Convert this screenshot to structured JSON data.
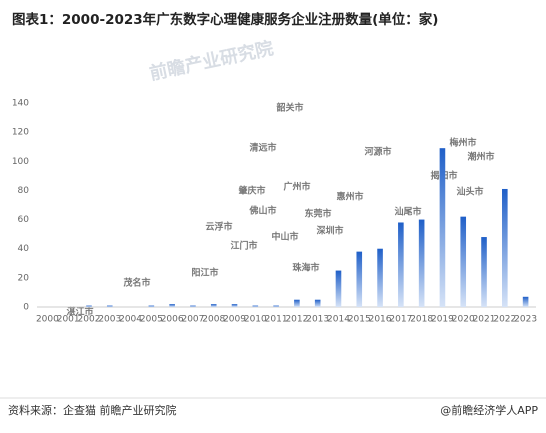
{
  "chart_data": {
    "type": "bar",
    "title": "图表1：2000-2023年广东数字心理健康服务企业注册数量(单位：家)",
    "categories": [
      "2000",
      "2001",
      "2002",
      "2003",
      "2004",
      "2005",
      "2006",
      "2007",
      "2008",
      "2009",
      "2010",
      "2011",
      "2012",
      "2013",
      "2014",
      "2015",
      "2016",
      "2017",
      "2018",
      "2019",
      "2020",
      "2021",
      "2022",
      "2023"
    ],
    "values": [
      0,
      0,
      1,
      1,
      0,
      1,
      2,
      1,
      2,
      2,
      1,
      1,
      5,
      5,
      25,
      38,
      40,
      58,
      60,
      109,
      62,
      48,
      81,
      7
    ],
    "color": "#2a6bd1",
    "ylim": [
      0,
      140
    ],
    "yticks": [
      0,
      20,
      40,
      60,
      80,
      100,
      120,
      140
    ],
    "grid": false,
    "map_labels": [
      "韶关市",
      "清远市",
      "河源市",
      "梅州市",
      "潮州市",
      "揭阳市",
      "汕头市",
      "肇庆市",
      "广州市",
      "惠州市",
      "佛山市",
      "东莞市",
      "云浮市",
      "中山市",
      "深圳市",
      "江门市",
      "珠海市",
      "阳江市",
      "茂名市",
      "汕尾市",
      "湛江市"
    ],
    "watermark": "前瞻产业研究院",
    "source": "资料来源：企查猫 前瞻产业研究院",
    "credit": "@前瞻经济学人APP"
  }
}
